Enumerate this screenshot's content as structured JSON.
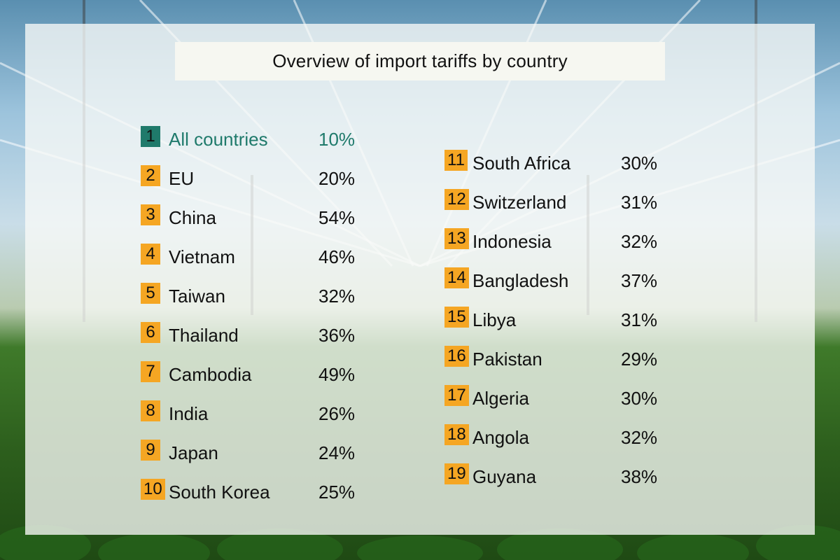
{
  "title": "Overview of import tariffs by country",
  "colors": {
    "badge": "#f5a623",
    "highlight": "#1f7a6b",
    "panel": "#f8faf7"
  },
  "left_column": [
    {
      "num": "1",
      "country": "All countries",
      "tariff": "10%",
      "highlight": true
    },
    {
      "num": "2",
      "country": "EU",
      "tariff": "20%"
    },
    {
      "num": "3",
      "country": "China",
      "tariff": "54%"
    },
    {
      "num": "4",
      "country": "Vietnam",
      "tariff": "46%"
    },
    {
      "num": "5",
      "country": "Taiwan",
      "tariff": "32%"
    },
    {
      "num": "6",
      "country": "Thailand",
      "tariff": "36%"
    },
    {
      "num": "7",
      "country": "Cambodia",
      "tariff": "49%"
    },
    {
      "num": "8",
      "country": "India",
      "tariff": "26%"
    },
    {
      "num": "9",
      "country": "Japan",
      "tariff": "24%"
    },
    {
      "num": "10",
      "country": "South Korea",
      "tariff": "25%"
    }
  ],
  "right_column": [
    {
      "num": "11",
      "country": "South Africa",
      "tariff": "30%"
    },
    {
      "num": "12",
      "country": "Switzerland",
      "tariff": "31%"
    },
    {
      "num": "13",
      "country": "Indonesia",
      "tariff": "32%"
    },
    {
      "num": "14",
      "country": "Bangladesh",
      "tariff": "37%"
    },
    {
      "num": "15",
      "country": "Libya",
      "tariff": "31%"
    },
    {
      "num": "16",
      "country": "Pakistan",
      "tariff": "29%"
    },
    {
      "num": "17",
      "country": "Algeria",
      "tariff": "30%"
    },
    {
      "num": "18",
      "country": "Angola",
      "tariff": "32%"
    },
    {
      "num": "19",
      "country": "Guyana",
      "tariff": "38%"
    }
  ]
}
